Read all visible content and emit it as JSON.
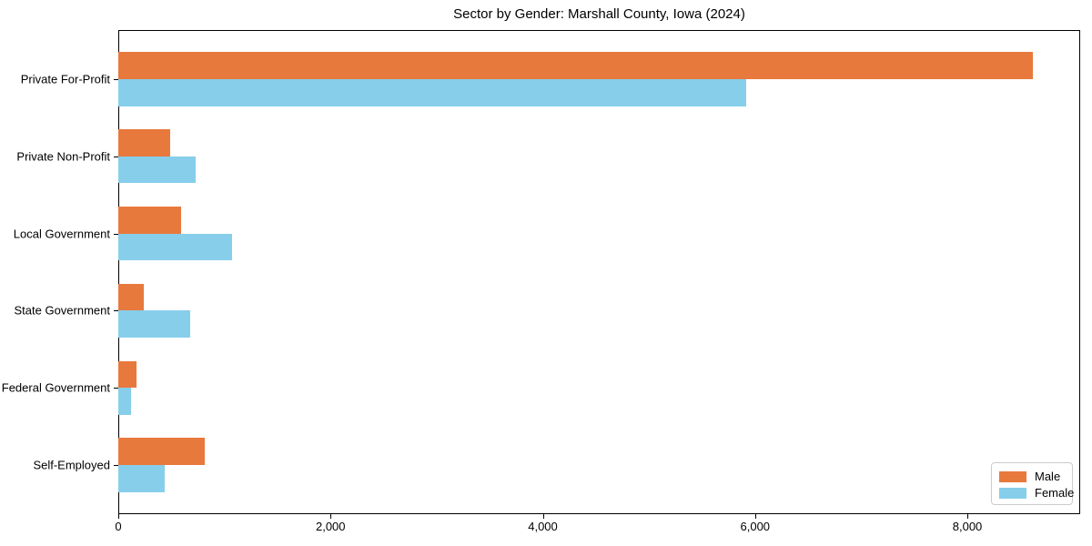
{
  "page": {
    "title": "Sector by Gender: Marshall County, Iowa (2024)"
  },
  "chart_data": {
    "type": "bar",
    "orientation": "horizontal",
    "title": "Sector by Gender: Marshall County, Iowa (2024)",
    "categories": [
      "Private For-Profit",
      "Private Non-Profit",
      "Local Government",
      "State Government",
      "Federal Government",
      "Self-Employed"
    ],
    "series": [
      {
        "name": "Male",
        "color": "#E8793D",
        "values": [
          8620,
          490,
          590,
          240,
          170,
          815
        ]
      },
      {
        "name": "Female",
        "color": "#87CEEB",
        "values": [
          5915,
          730,
          1070,
          680,
          120,
          440
        ]
      }
    ],
    "xlabel": "",
    "ylabel": "",
    "xlim": [
      0,
      9063
    ],
    "xticks": [
      0,
      2000,
      4000,
      6000,
      8000
    ],
    "xtick_labels": [
      "0",
      "2,000",
      "4,000",
      "6,000",
      "8,000"
    ],
    "grid": false,
    "legend": {
      "position": "lower right",
      "entries": [
        "Male",
        "Female"
      ]
    }
  }
}
